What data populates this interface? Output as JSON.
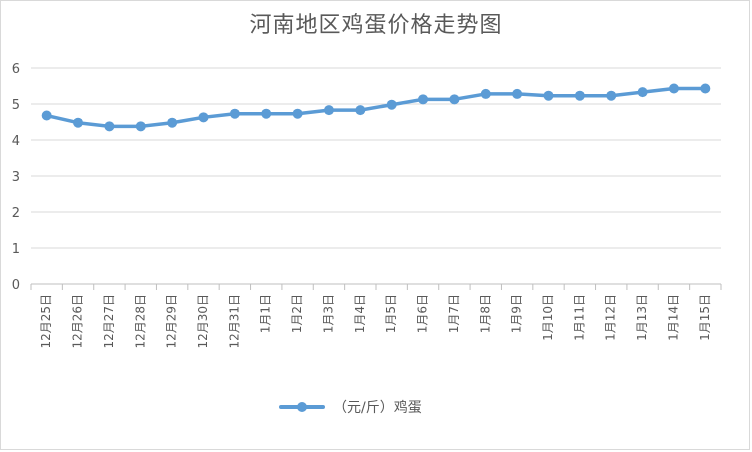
{
  "chart_data": {
    "type": "line",
    "title": "河南地区鸡蛋价格走势图",
    "categories": [
      "12月25日",
      "12月26日",
      "12月27日",
      "12月28日",
      "12月29日",
      "12月30日",
      "12月31日",
      "1月1日",
      "1月2日",
      "1月3日",
      "1月4日",
      "1月5日",
      "1月6日",
      "1月7日",
      "1月8日",
      "1月9日",
      "1月10日",
      "1月11日",
      "1月12日",
      "1月13日",
      "1月14日",
      "1月15日"
    ],
    "series": [
      {
        "name": "（元/斤）鸡蛋",
        "values": [
          4.68,
          4.48,
          4.38,
          4.38,
          4.48,
          4.63,
          4.73,
          4.73,
          4.73,
          4.83,
          4.83,
          4.98,
          5.13,
          5.13,
          5.28,
          5.28,
          5.23,
          5.23,
          5.23,
          5.33,
          5.43,
          5.43
        ],
        "color": "#5b9bd5"
      }
    ],
    "ylim": [
      0,
      6
    ],
    "yticks": [
      0,
      1,
      2,
      3,
      4,
      5,
      6
    ],
    "grid": true,
    "legend_position": "bottom"
  }
}
